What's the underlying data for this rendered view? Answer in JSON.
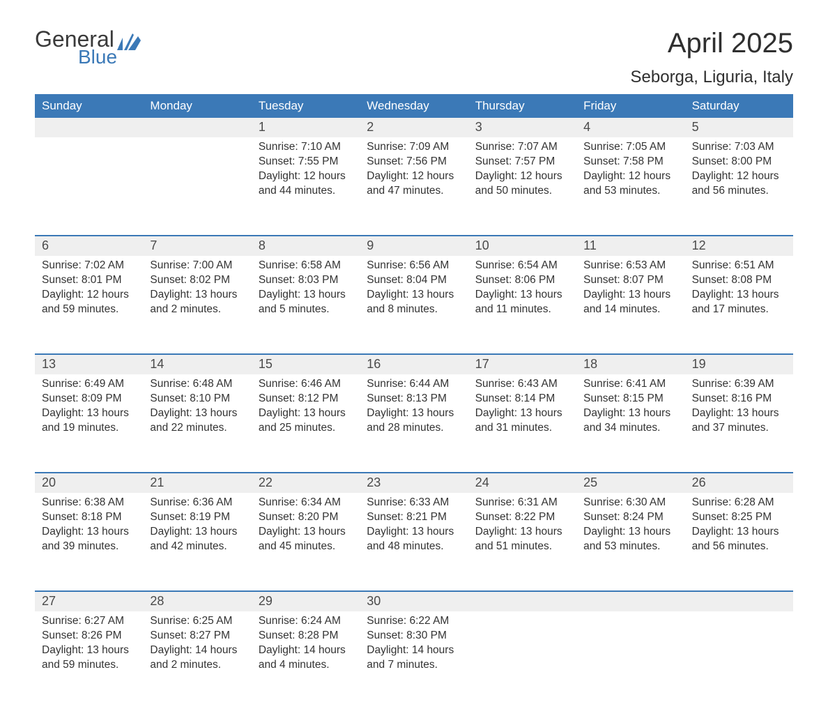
{
  "brand": {
    "general": "General",
    "blue": "Blue"
  },
  "header": {
    "month_year": "April 2025",
    "location": "Seborga, Liguria, Italy"
  },
  "colors": {
    "header_bg": "#3b79b7",
    "header_text": "#ffffff",
    "date_strip_bg": "#efefef",
    "week_top_border": "#3b79b7",
    "body_text": "#333333",
    "logo_gray": "#3a3a3a",
    "logo_blue": "#3b79b7"
  },
  "day_names": [
    "Sunday",
    "Monday",
    "Tuesday",
    "Wednesday",
    "Thursday",
    "Friday",
    "Saturday"
  ],
  "weeks": [
    [
      {
        "date": "",
        "lines": []
      },
      {
        "date": "",
        "lines": []
      },
      {
        "date": "1",
        "lines": [
          "Sunrise: 7:10 AM",
          "Sunset: 7:55 PM",
          "Daylight: 12 hours and 44 minutes."
        ]
      },
      {
        "date": "2",
        "lines": [
          "Sunrise: 7:09 AM",
          "Sunset: 7:56 PM",
          "Daylight: 12 hours and 47 minutes."
        ]
      },
      {
        "date": "3",
        "lines": [
          "Sunrise: 7:07 AM",
          "Sunset: 7:57 PM",
          "Daylight: 12 hours and 50 minutes."
        ]
      },
      {
        "date": "4",
        "lines": [
          "Sunrise: 7:05 AM",
          "Sunset: 7:58 PM",
          "Daylight: 12 hours and 53 minutes."
        ]
      },
      {
        "date": "5",
        "lines": [
          "Sunrise: 7:03 AM",
          "Sunset: 8:00 PM",
          "Daylight: 12 hours and 56 minutes."
        ]
      }
    ],
    [
      {
        "date": "6",
        "lines": [
          "Sunrise: 7:02 AM",
          "Sunset: 8:01 PM",
          "Daylight: 12 hours and 59 minutes."
        ]
      },
      {
        "date": "7",
        "lines": [
          "Sunrise: 7:00 AM",
          "Sunset: 8:02 PM",
          "Daylight: 13 hours and 2 minutes."
        ]
      },
      {
        "date": "8",
        "lines": [
          "Sunrise: 6:58 AM",
          "Sunset: 8:03 PM",
          "Daylight: 13 hours and 5 minutes."
        ]
      },
      {
        "date": "9",
        "lines": [
          "Sunrise: 6:56 AM",
          "Sunset: 8:04 PM",
          "Daylight: 13 hours and 8 minutes."
        ]
      },
      {
        "date": "10",
        "lines": [
          "Sunrise: 6:54 AM",
          "Sunset: 8:06 PM",
          "Daylight: 13 hours and 11 minutes."
        ]
      },
      {
        "date": "11",
        "lines": [
          "Sunrise: 6:53 AM",
          "Sunset: 8:07 PM",
          "Daylight: 13 hours and 14 minutes."
        ]
      },
      {
        "date": "12",
        "lines": [
          "Sunrise: 6:51 AM",
          "Sunset: 8:08 PM",
          "Daylight: 13 hours and 17 minutes."
        ]
      }
    ],
    [
      {
        "date": "13",
        "lines": [
          "Sunrise: 6:49 AM",
          "Sunset: 8:09 PM",
          "Daylight: 13 hours and 19 minutes."
        ]
      },
      {
        "date": "14",
        "lines": [
          "Sunrise: 6:48 AM",
          "Sunset: 8:10 PM",
          "Daylight: 13 hours and 22 minutes."
        ]
      },
      {
        "date": "15",
        "lines": [
          "Sunrise: 6:46 AM",
          "Sunset: 8:12 PM",
          "Daylight: 13 hours and 25 minutes."
        ]
      },
      {
        "date": "16",
        "lines": [
          "Sunrise: 6:44 AM",
          "Sunset: 8:13 PM",
          "Daylight: 13 hours and 28 minutes."
        ]
      },
      {
        "date": "17",
        "lines": [
          "Sunrise: 6:43 AM",
          "Sunset: 8:14 PM",
          "Daylight: 13 hours and 31 minutes."
        ]
      },
      {
        "date": "18",
        "lines": [
          "Sunrise: 6:41 AM",
          "Sunset: 8:15 PM",
          "Daylight: 13 hours and 34 minutes."
        ]
      },
      {
        "date": "19",
        "lines": [
          "Sunrise: 6:39 AM",
          "Sunset: 8:16 PM",
          "Daylight: 13 hours and 37 minutes."
        ]
      }
    ],
    [
      {
        "date": "20",
        "lines": [
          "Sunrise: 6:38 AM",
          "Sunset: 8:18 PM",
          "Daylight: 13 hours and 39 minutes."
        ]
      },
      {
        "date": "21",
        "lines": [
          "Sunrise: 6:36 AM",
          "Sunset: 8:19 PM",
          "Daylight: 13 hours and 42 minutes."
        ]
      },
      {
        "date": "22",
        "lines": [
          "Sunrise: 6:34 AM",
          "Sunset: 8:20 PM",
          "Daylight: 13 hours and 45 minutes."
        ]
      },
      {
        "date": "23",
        "lines": [
          "Sunrise: 6:33 AM",
          "Sunset: 8:21 PM",
          "Daylight: 13 hours and 48 minutes."
        ]
      },
      {
        "date": "24",
        "lines": [
          "Sunrise: 6:31 AM",
          "Sunset: 8:22 PM",
          "Daylight: 13 hours and 51 minutes."
        ]
      },
      {
        "date": "25",
        "lines": [
          "Sunrise: 6:30 AM",
          "Sunset: 8:24 PM",
          "Daylight: 13 hours and 53 minutes."
        ]
      },
      {
        "date": "26",
        "lines": [
          "Sunrise: 6:28 AM",
          "Sunset: 8:25 PM",
          "Daylight: 13 hours and 56 minutes."
        ]
      }
    ],
    [
      {
        "date": "27",
        "lines": [
          "Sunrise: 6:27 AM",
          "Sunset: 8:26 PM",
          "Daylight: 13 hours and 59 minutes."
        ]
      },
      {
        "date": "28",
        "lines": [
          "Sunrise: 6:25 AM",
          "Sunset: 8:27 PM",
          "Daylight: 14 hours and 2 minutes."
        ]
      },
      {
        "date": "29",
        "lines": [
          "Sunrise: 6:24 AM",
          "Sunset: 8:28 PM",
          "Daylight: 14 hours and 4 minutes."
        ]
      },
      {
        "date": "30",
        "lines": [
          "Sunrise: 6:22 AM",
          "Sunset: 8:30 PM",
          "Daylight: 14 hours and 7 minutes."
        ]
      },
      {
        "date": "",
        "lines": []
      },
      {
        "date": "",
        "lines": []
      },
      {
        "date": "",
        "lines": []
      }
    ]
  ]
}
